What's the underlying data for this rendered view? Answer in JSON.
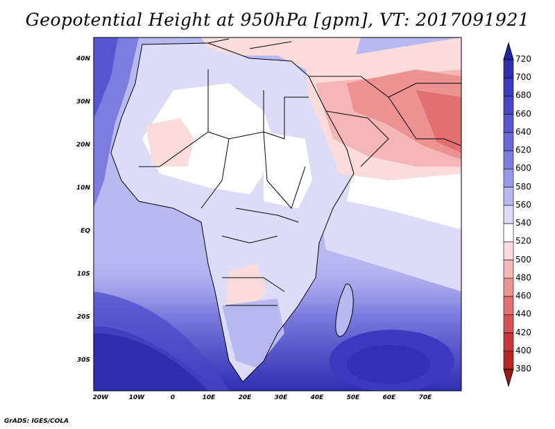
{
  "title": "Geopotential Height at 950hPa [gpm], VT: 2017091921",
  "footer": "GrADS: IGES/COLA",
  "lat_labels": [
    "40N",
    "30N",
    "20N",
    "10N",
    "EQ",
    "10S",
    "20S",
    "30S"
  ],
  "lon_labels": [
    "20W",
    "10W",
    "0",
    "10E",
    "20E",
    "30E",
    "40E",
    "50E",
    "60E",
    "70E"
  ],
  "colorbar": {
    "levels": [
      "720",
      "700",
      "680",
      "660",
      "640",
      "620",
      "600",
      "580",
      "560",
      "540",
      "520",
      "500",
      "480",
      "460",
      "440",
      "420",
      "400",
      "380"
    ],
    "colors": [
      "#2323a0",
      "#2e2eb0",
      "#3a3ac0",
      "#4747c8",
      "#5656d0",
      "#6868d8",
      "#7d7de0",
      "#9999ea",
      "#b9b9f2",
      "#dcdcf8",
      "#ffffff",
      "#fbdcdc",
      "#f4b6b6",
      "#ec9292",
      "#e27070",
      "#d75252",
      "#c93838",
      "#b82525",
      "#a01818"
    ]
  },
  "map_colors": {
    "ocean_deep": "#3333b8",
    "ocean_mid": "#6868d8",
    "ocean_light": "#9999ea",
    "land_pale": "#dcdcf8",
    "white": "#ffffff",
    "pink": "#fbdcdc",
    "salmon": "#ec9292",
    "red": "#e06868"
  }
}
